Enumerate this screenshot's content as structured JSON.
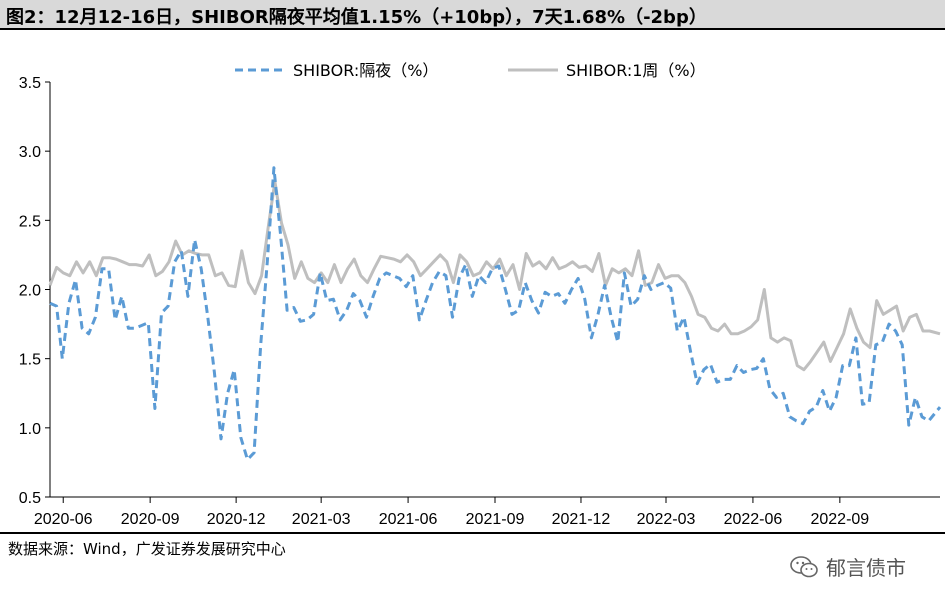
{
  "header": {
    "title": "图2：12月12-16日，SHIBOR隔夜平均值1.15%（+10bp），7天1.68%（-2bp）"
  },
  "footer": {
    "source": "数据来源：Wind，广发证券发展研究中心",
    "watermark": "郁言债市"
  },
  "colors": {
    "overnight": "#5b9bd5",
    "week": "#bfbfbf"
  },
  "chart_data": {
    "type": "line",
    "title": "",
    "xlabel": "",
    "ylabel": "",
    "ylim": [
      0.5,
      3.5
    ],
    "yticks": [
      "0.5",
      "1.0",
      "1.5",
      "2.0",
      "2.5",
      "3.0",
      "3.5"
    ],
    "xticks": [
      "2020-06",
      "2020-09",
      "2020-12",
      "2021-03",
      "2021-06",
      "2021-09",
      "2021-12",
      "2022-03",
      "2022-06",
      "2022-09"
    ],
    "xrange": [
      "2020-05-18",
      "2022-12-16"
    ],
    "legend": "top-center",
    "series": [
      {
        "name": "SHIBOR:隔夜（%）",
        "style": "dashed",
        "points": [
          [
            "2020-05-18",
            1.9
          ],
          [
            "2020-05-25",
            1.88
          ],
          [
            "2020-05-31",
            1.5
          ],
          [
            "2020-06-07",
            1.9
          ],
          [
            "2020-06-14",
            2.07
          ],
          [
            "2020-06-21",
            1.72
          ],
          [
            "2020-06-28",
            1.68
          ],
          [
            "2020-07-05",
            1.8
          ],
          [
            "2020-07-12",
            2.15
          ],
          [
            "2020-07-19",
            2.15
          ],
          [
            "2020-07-26",
            1.78
          ],
          [
            "2020-08-02",
            1.95
          ],
          [
            "2020-08-09",
            1.72
          ],
          [
            "2020-08-16",
            1.72
          ],
          [
            "2020-08-23",
            1.74
          ],
          [
            "2020-08-30",
            1.76
          ],
          [
            "2020-09-06",
            1.14
          ],
          [
            "2020-09-13",
            1.83
          ],
          [
            "2020-09-20",
            1.88
          ],
          [
            "2020-09-27",
            2.2
          ],
          [
            "2020-10-04",
            2.28
          ],
          [
            "2020-10-11",
            1.95
          ],
          [
            "2020-10-18",
            2.36
          ],
          [
            "2020-10-25",
            2.15
          ],
          [
            "2020-11-01",
            1.8
          ],
          [
            "2020-11-08",
            1.4
          ],
          [
            "2020-11-15",
            0.92
          ],
          [
            "2020-11-22",
            1.25
          ],
          [
            "2020-11-29",
            1.42
          ],
          [
            "2020-12-06",
            0.93
          ],
          [
            "2020-12-13",
            0.77
          ],
          [
            "2020-12-20",
            0.82
          ],
          [
            "2020-12-27",
            1.6
          ],
          [
            "2021-01-03",
            2.2
          ],
          [
            "2021-01-10",
            2.88
          ],
          [
            "2021-01-17",
            2.4
          ],
          [
            "2021-01-24",
            1.85
          ],
          [
            "2021-01-31",
            1.87
          ],
          [
            "2021-02-07",
            1.77
          ],
          [
            "2021-02-14",
            1.78
          ],
          [
            "2021-02-21",
            1.82
          ],
          [
            "2021-02-28",
            2.12
          ],
          [
            "2021-03-07",
            1.92
          ],
          [
            "2021-03-14",
            1.93
          ],
          [
            "2021-03-21",
            1.78
          ],
          [
            "2021-03-28",
            1.85
          ],
          [
            "2021-04-04",
            1.97
          ],
          [
            "2021-04-11",
            1.92
          ],
          [
            "2021-04-18",
            1.8
          ],
          [
            "2021-04-25",
            1.95
          ],
          [
            "2021-05-02",
            2.08
          ],
          [
            "2021-05-09",
            2.12
          ],
          [
            "2021-05-16",
            2.1
          ],
          [
            "2021-05-23",
            2.08
          ],
          [
            "2021-05-30",
            2.02
          ],
          [
            "2021-06-06",
            2.1
          ],
          [
            "2021-06-13",
            1.78
          ],
          [
            "2021-06-20",
            1.92
          ],
          [
            "2021-06-27",
            2.05
          ],
          [
            "2021-07-04",
            2.13
          ],
          [
            "2021-07-11",
            2.1
          ],
          [
            "2021-07-18",
            1.8
          ],
          [
            "2021-07-25",
            2.08
          ],
          [
            "2021-08-01",
            2.18
          ],
          [
            "2021-08-08",
            1.95
          ],
          [
            "2021-08-15",
            2.1
          ],
          [
            "2021-08-22",
            2.05
          ],
          [
            "2021-08-29",
            2.15
          ],
          [
            "2021-09-05",
            2.17
          ],
          [
            "2021-09-12",
            2.0
          ],
          [
            "2021-09-19",
            1.82
          ],
          [
            "2021-09-26",
            1.85
          ],
          [
            "2021-10-03",
            2.05
          ],
          [
            "2021-10-10",
            1.92
          ],
          [
            "2021-10-17",
            1.83
          ],
          [
            "2021-10-24",
            1.98
          ],
          [
            "2021-10-31",
            1.95
          ],
          [
            "2021-11-07",
            1.97
          ],
          [
            "2021-11-14",
            1.9
          ],
          [
            "2021-11-21",
            2.0
          ],
          [
            "2021-11-28",
            2.08
          ],
          [
            "2021-12-05",
            1.93
          ],
          [
            "2021-12-12",
            1.65
          ],
          [
            "2021-12-19",
            1.82
          ],
          [
            "2021-12-26",
            2.03
          ],
          [
            "2022-01-02",
            1.8
          ],
          [
            "2022-01-09",
            1.62
          ],
          [
            "2022-01-16",
            2.12
          ],
          [
            "2022-01-23",
            1.88
          ],
          [
            "2022-01-30",
            1.93
          ],
          [
            "2022-02-06",
            2.1
          ],
          [
            "2022-02-13",
            2.0
          ],
          [
            "2022-02-20",
            2.03
          ],
          [
            "2022-02-27",
            2.05
          ],
          [
            "2022-03-06",
            2.01
          ],
          [
            "2022-03-13",
            1.7
          ],
          [
            "2022-03-20",
            1.8
          ],
          [
            "2022-03-27",
            1.55
          ],
          [
            "2022-04-03",
            1.32
          ],
          [
            "2022-04-10",
            1.42
          ],
          [
            "2022-04-17",
            1.46
          ],
          [
            "2022-04-24",
            1.33
          ],
          [
            "2022-05-01",
            1.35
          ],
          [
            "2022-05-08",
            1.35
          ],
          [
            "2022-05-15",
            1.45
          ],
          [
            "2022-05-22",
            1.4
          ],
          [
            "2022-05-29",
            1.42
          ],
          [
            "2022-06-05",
            1.43
          ],
          [
            "2022-06-12",
            1.5
          ],
          [
            "2022-06-19",
            1.28
          ],
          [
            "2022-06-26",
            1.22
          ],
          [
            "2022-07-03",
            1.25
          ],
          [
            "2022-07-10",
            1.08
          ],
          [
            "2022-07-17",
            1.05
          ],
          [
            "2022-07-24",
            1.03
          ],
          [
            "2022-07-31",
            1.12
          ],
          [
            "2022-08-07",
            1.15
          ],
          [
            "2022-08-14",
            1.27
          ],
          [
            "2022-08-21",
            1.12
          ],
          [
            "2022-08-28",
            1.22
          ],
          [
            "2022-09-04",
            1.45
          ],
          [
            "2022-09-11",
            1.45
          ],
          [
            "2022-09-18",
            1.65
          ],
          [
            "2022-09-25",
            1.17
          ],
          [
            "2022-10-02",
            1.18
          ],
          [
            "2022-10-09",
            1.6
          ],
          [
            "2022-10-16",
            1.62
          ],
          [
            "2022-10-23",
            1.75
          ],
          [
            "2022-10-30",
            1.7
          ],
          [
            "2022-11-06",
            1.6
          ],
          [
            "2022-11-13",
            1.02
          ],
          [
            "2022-11-20",
            1.22
          ],
          [
            "2022-11-27",
            1.08
          ],
          [
            "2022-12-04",
            1.05
          ],
          [
            "2022-12-16",
            1.15
          ]
        ]
      },
      {
        "name": "SHIBOR:1周（%）",
        "style": "solid",
        "points": [
          [
            "2020-05-18",
            2.03
          ],
          [
            "2020-05-25",
            2.16
          ],
          [
            "2020-06-01",
            2.12
          ],
          [
            "2020-06-08",
            2.1
          ],
          [
            "2020-06-15",
            2.2
          ],
          [
            "2020-06-22",
            2.12
          ],
          [
            "2020-06-29",
            2.2
          ],
          [
            "2020-07-06",
            2.1
          ],
          [
            "2020-07-13",
            2.23
          ],
          [
            "2020-07-20",
            2.23
          ],
          [
            "2020-07-27",
            2.22
          ],
          [
            "2020-08-03",
            2.2
          ],
          [
            "2020-08-10",
            2.18
          ],
          [
            "2020-08-17",
            2.18
          ],
          [
            "2020-08-24",
            2.17
          ],
          [
            "2020-08-31",
            2.25
          ],
          [
            "2020-09-07",
            2.1
          ],
          [
            "2020-09-14",
            2.13
          ],
          [
            "2020-09-21",
            2.2
          ],
          [
            "2020-09-28",
            2.35
          ],
          [
            "2020-10-05",
            2.25
          ],
          [
            "2020-10-12",
            2.28
          ],
          [
            "2020-10-19",
            2.26
          ],
          [
            "2020-10-26",
            2.25
          ],
          [
            "2020-11-02",
            2.25
          ],
          [
            "2020-11-09",
            2.1
          ],
          [
            "2020-11-16",
            2.12
          ],
          [
            "2020-11-23",
            2.03
          ],
          [
            "2020-11-30",
            2.02
          ],
          [
            "2020-12-07",
            2.28
          ],
          [
            "2020-12-14",
            2.05
          ],
          [
            "2020-12-21",
            1.97
          ],
          [
            "2020-12-28",
            2.1
          ],
          [
            "2021-01-04",
            2.45
          ],
          [
            "2021-01-11",
            2.78
          ],
          [
            "2021-01-18",
            2.48
          ],
          [
            "2021-01-25",
            2.32
          ],
          [
            "2021-02-01",
            2.08
          ],
          [
            "2021-02-08",
            2.2
          ],
          [
            "2021-02-15",
            2.08
          ],
          [
            "2021-02-22",
            2.05
          ],
          [
            "2021-03-01",
            2.12
          ],
          [
            "2021-03-08",
            2.05
          ],
          [
            "2021-03-15",
            2.18
          ],
          [
            "2021-03-22",
            2.05
          ],
          [
            "2021-03-29",
            2.15
          ],
          [
            "2021-04-05",
            2.22
          ],
          [
            "2021-04-12",
            2.1
          ],
          [
            "2021-04-19",
            2.05
          ],
          [
            "2021-04-26",
            2.15
          ],
          [
            "2021-05-03",
            2.24
          ],
          [
            "2021-05-10",
            2.23
          ],
          [
            "2021-05-17",
            2.22
          ],
          [
            "2021-05-24",
            2.2
          ],
          [
            "2021-05-31",
            2.25
          ],
          [
            "2021-06-07",
            2.2
          ],
          [
            "2021-06-14",
            2.1
          ],
          [
            "2021-06-21",
            2.15
          ],
          [
            "2021-06-28",
            2.2
          ],
          [
            "2021-07-05",
            2.25
          ],
          [
            "2021-07-12",
            2.2
          ],
          [
            "2021-07-19",
            2.05
          ],
          [
            "2021-07-26",
            2.25
          ],
          [
            "2021-08-02",
            2.2
          ],
          [
            "2021-08-09",
            2.1
          ],
          [
            "2021-08-16",
            2.12
          ],
          [
            "2021-08-23",
            2.2
          ],
          [
            "2021-08-30",
            2.15
          ],
          [
            "2021-09-06",
            2.22
          ],
          [
            "2021-09-13",
            2.1
          ],
          [
            "2021-09-20",
            2.18
          ],
          [
            "2021-09-27",
            2.0
          ],
          [
            "2021-10-04",
            2.26
          ],
          [
            "2021-10-11",
            2.17
          ],
          [
            "2021-10-18",
            2.2
          ],
          [
            "2021-10-25",
            2.15
          ],
          [
            "2021-11-01",
            2.23
          ],
          [
            "2021-11-08",
            2.15
          ],
          [
            "2021-11-15",
            2.17
          ],
          [
            "2021-11-22",
            2.2
          ],
          [
            "2021-11-29",
            2.16
          ],
          [
            "2021-12-06",
            2.17
          ],
          [
            "2021-12-13",
            2.13
          ],
          [
            "2021-12-20",
            2.26
          ],
          [
            "2021-12-27",
            2.03
          ],
          [
            "2022-01-03",
            2.15
          ],
          [
            "2022-01-10",
            2.12
          ],
          [
            "2022-01-17",
            2.15
          ],
          [
            "2022-01-24",
            2.1
          ],
          [
            "2022-01-31",
            2.28
          ],
          [
            "2022-02-07",
            2.03
          ],
          [
            "2022-02-14",
            2.05
          ],
          [
            "2022-02-21",
            2.18
          ],
          [
            "2022-02-28",
            2.08
          ],
          [
            "2022-03-07",
            2.1
          ],
          [
            "2022-03-14",
            2.1
          ],
          [
            "2022-03-21",
            2.05
          ],
          [
            "2022-03-28",
            1.95
          ],
          [
            "2022-04-04",
            1.82
          ],
          [
            "2022-04-11",
            1.8
          ],
          [
            "2022-04-18",
            1.72
          ],
          [
            "2022-04-25",
            1.7
          ],
          [
            "2022-05-02",
            1.75
          ],
          [
            "2022-05-09",
            1.68
          ],
          [
            "2022-05-16",
            1.68
          ],
          [
            "2022-05-23",
            1.7
          ],
          [
            "2022-05-30",
            1.73
          ],
          [
            "2022-06-06",
            1.78
          ],
          [
            "2022-06-13",
            2.0
          ],
          [
            "2022-06-20",
            1.65
          ],
          [
            "2022-06-27",
            1.62
          ],
          [
            "2022-07-04",
            1.65
          ],
          [
            "2022-07-11",
            1.63
          ],
          [
            "2022-07-18",
            1.45
          ],
          [
            "2022-07-25",
            1.42
          ],
          [
            "2022-08-01",
            1.48
          ],
          [
            "2022-08-08",
            1.55
          ],
          [
            "2022-08-15",
            1.62
          ],
          [
            "2022-08-22",
            1.48
          ],
          [
            "2022-08-29",
            1.58
          ],
          [
            "2022-09-05",
            1.68
          ],
          [
            "2022-09-12",
            1.86
          ],
          [
            "2022-09-19",
            1.72
          ],
          [
            "2022-09-26",
            1.62
          ],
          [
            "2022-10-03",
            1.58
          ],
          [
            "2022-10-10",
            1.92
          ],
          [
            "2022-10-17",
            1.82
          ],
          [
            "2022-10-24",
            1.85
          ],
          [
            "2022-10-31",
            1.88
          ],
          [
            "2022-11-07",
            1.7
          ],
          [
            "2022-11-14",
            1.8
          ],
          [
            "2022-11-21",
            1.82
          ],
          [
            "2022-11-28",
            1.7
          ],
          [
            "2022-12-05",
            1.7
          ],
          [
            "2022-12-16",
            1.68
          ]
        ]
      }
    ]
  }
}
